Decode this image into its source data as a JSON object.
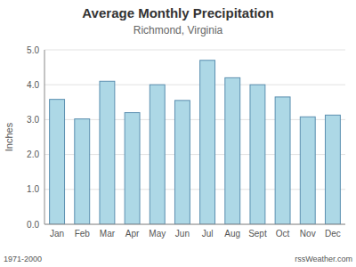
{
  "chart_data": {
    "type": "bar",
    "title": "Average Monthly Precipitation",
    "subtitle": "Richmond, Virginia",
    "ylabel": "Inches",
    "categories": [
      "Jan",
      "Feb",
      "Mar",
      "Apr",
      "May",
      "Jun",
      "Jul",
      "Aug",
      "Sept",
      "Oct",
      "Nov",
      "Dec"
    ],
    "values": [
      3.58,
      3.02,
      4.1,
      3.2,
      4.0,
      3.55,
      4.7,
      4.2,
      4.0,
      3.65,
      3.08,
      3.13
    ],
    "color": "#add8e6",
    "ylim": [
      0.0,
      5.0
    ],
    "yticks": [
      {
        "value": 0.0,
        "label": "0.0"
      },
      {
        "value": 1.0,
        "label": "1.0"
      },
      {
        "value": 2.0,
        "label": "2.0"
      },
      {
        "value": 3.0,
        "label": "3.0"
      },
      {
        "value": 4.0,
        "label": "4.0"
      },
      {
        "value": 5.0,
        "label": "5.0"
      }
    ],
    "grid": true,
    "annotations": [
      "1971-2000",
      "rssWeather.com"
    ]
  }
}
